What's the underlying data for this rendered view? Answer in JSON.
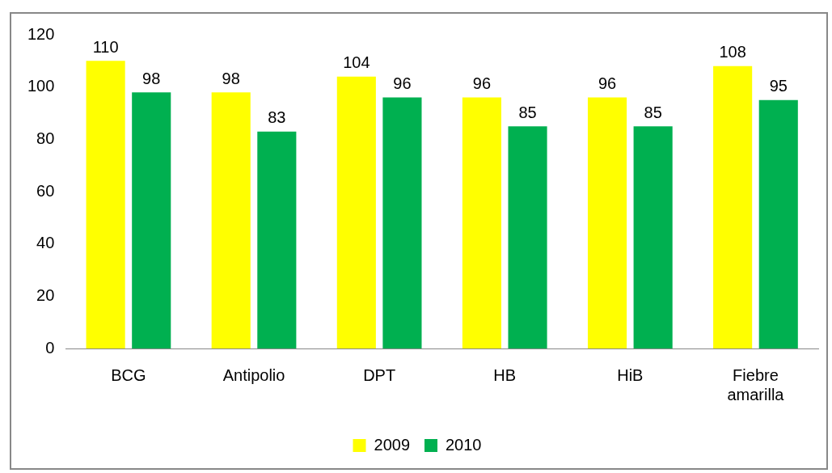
{
  "chart_data": {
    "type": "bar",
    "categories": [
      "BCG",
      "Antipolio",
      "DPT",
      "HB",
      "HiB",
      "Fiebre amarilla"
    ],
    "series": [
      {
        "name": "2009",
        "color": "#ffff00",
        "values": [
          110,
          98,
          104,
          96,
          96,
          108
        ]
      },
      {
        "name": "2010",
        "color": "#00b050",
        "values": [
          98,
          83,
          96,
          85,
          85,
          95
        ]
      }
    ],
    "ylim": [
      0,
      120
    ],
    "yticks": [
      0,
      20,
      40,
      60,
      80,
      100,
      120
    ],
    "grid": false,
    "legend": "bottom",
    "data_labels": true
  }
}
